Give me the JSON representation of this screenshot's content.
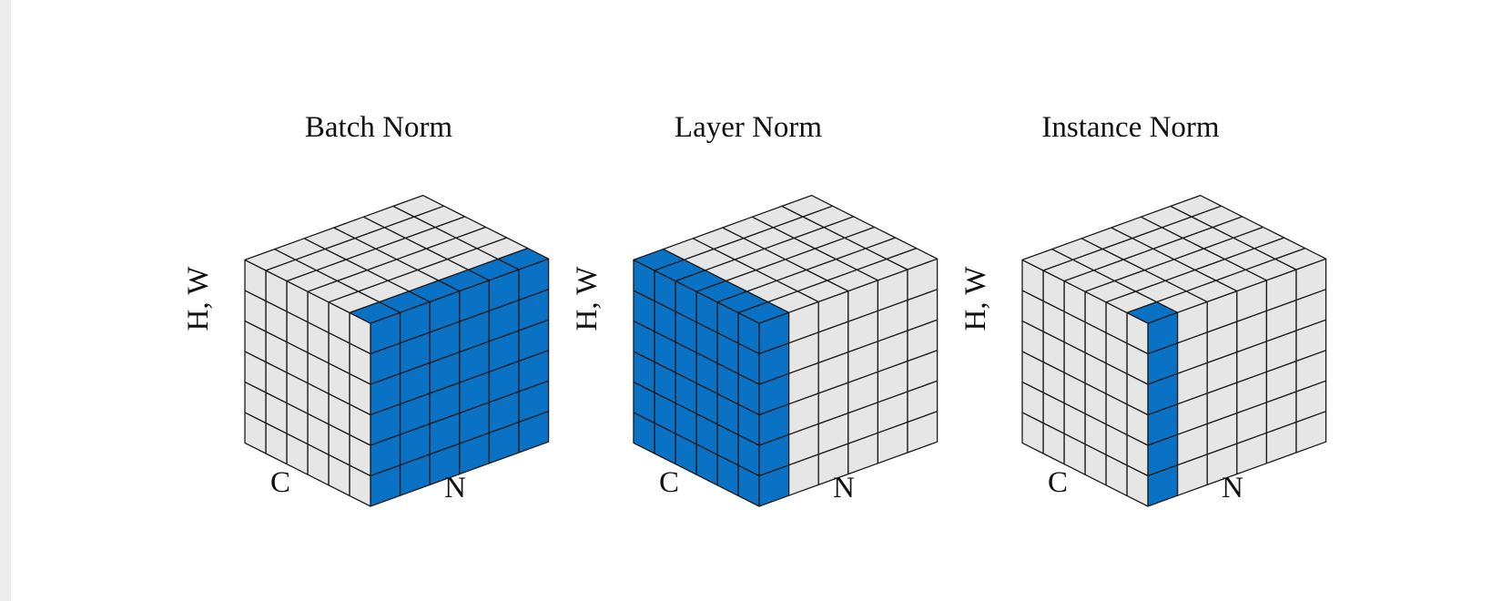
{
  "colors": {
    "highlight": "#0a72c4",
    "cell": "#e6e6e6",
    "edge": "#1a1a1a",
    "background": "#ffffff"
  },
  "grid_size": 6,
  "panels": [
    {
      "title": "Batch Norm",
      "labels": {
        "hw": "H, W",
        "c": "C",
        "n": "N"
      },
      "highlight": {
        "front_face_n_columns": [
          0,
          1,
          2,
          3,
          4,
          5
        ],
        "top_face_front_c_rows": [
          0
        ],
        "left_face_c_columns": []
      }
    },
    {
      "title": "Layer Norm",
      "labels": {
        "hw": "H, W",
        "c": "C",
        "n": "N"
      },
      "highlight": {
        "front_face_n_columns": [
          0
        ],
        "top_face_front_n_columns": [
          0
        ],
        "left_face_c_columns": [
          0,
          1,
          2,
          3,
          4,
          5
        ]
      }
    },
    {
      "title": "Instance Norm",
      "labels": {
        "hw": "H, W",
        "c": "C",
        "n": "N"
      },
      "highlight": {
        "front_face_n_columns": [
          0
        ],
        "top_face_front_cell": true,
        "left_face_c_columns": []
      }
    }
  ]
}
